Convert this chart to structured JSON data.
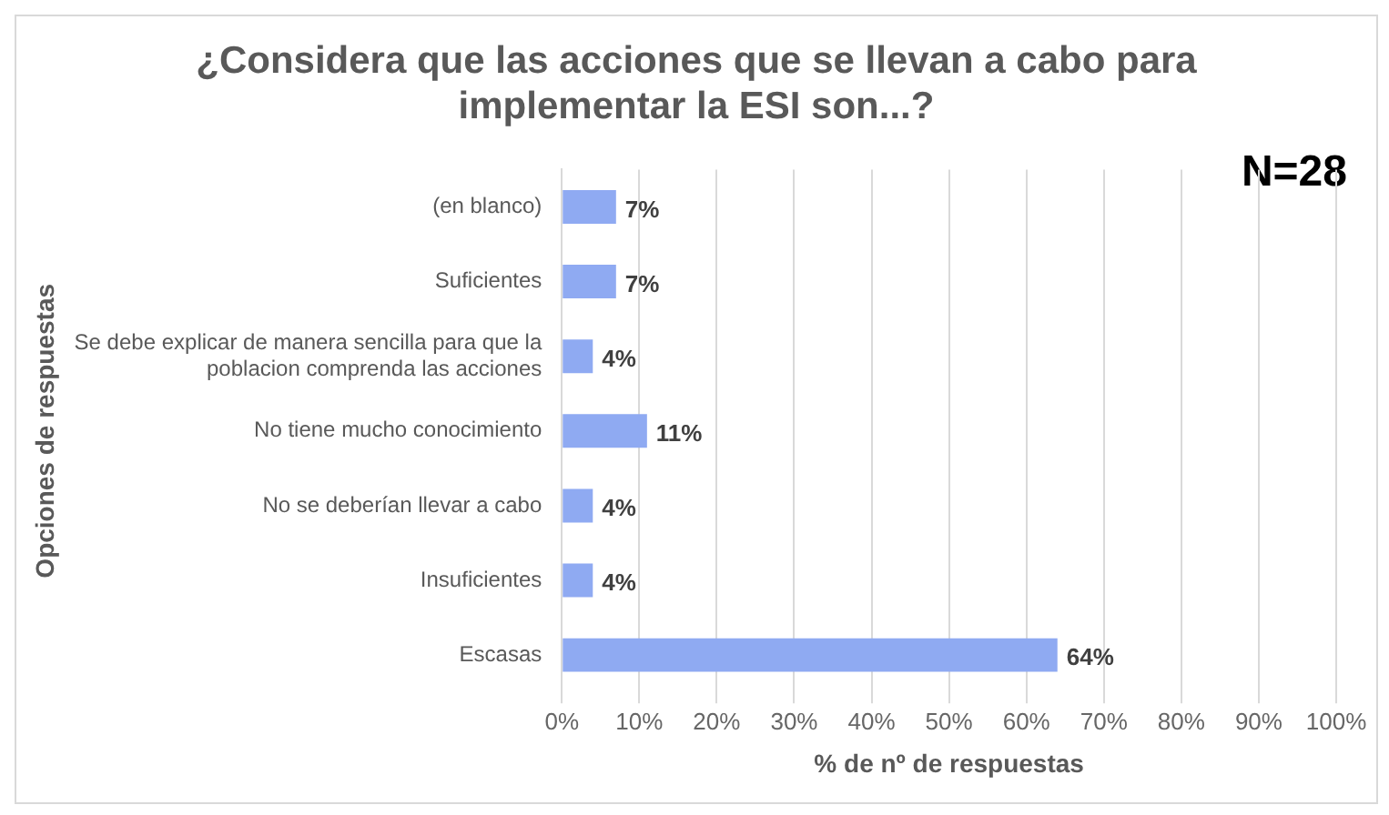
{
  "chart_data": {
    "type": "bar",
    "orientation": "horizontal",
    "title": "¿Considera que las acciones que se llevan a cabo para implementar la ESI son...?",
    "ylabel": "Opciones de respuestas",
    "xlabel": "% de nº de respuestas",
    "categories": [
      "(en blanco)",
      "Suficientes",
      "Se debe explicar de manera sencilla para que la poblacion comprenda las acciones",
      "No tiene mucho conocimiento",
      "No se deberían llevar a cabo",
      "Insuficientes",
      "Escasas"
    ],
    "values": [
      7,
      7,
      4,
      11,
      4,
      4,
      64
    ],
    "color": "#8faaf2",
    "value_labels": [
      "7%",
      "7%",
      "4%",
      "11%",
      "4%",
      "4%",
      "64%"
    ],
    "xlim": [
      0,
      100
    ],
    "xticks": [
      {
        "value": 0,
        "label": "0%"
      },
      {
        "value": 10,
        "label": "10%"
      },
      {
        "value": 20,
        "label": "20%"
      },
      {
        "value": 30,
        "label": "30%"
      },
      {
        "value": 40,
        "label": "40%"
      },
      {
        "value": 50,
        "label": "50%"
      },
      {
        "value": 60,
        "label": "60%"
      },
      {
        "value": 70,
        "label": "70%"
      },
      {
        "value": 80,
        "label": "80%"
      },
      {
        "value": 90,
        "label": "90%"
      },
      {
        "value": 100,
        "label": "100%"
      }
    ],
    "grid": "x",
    "legend": false,
    "annotations": [
      "N=28"
    ]
  }
}
